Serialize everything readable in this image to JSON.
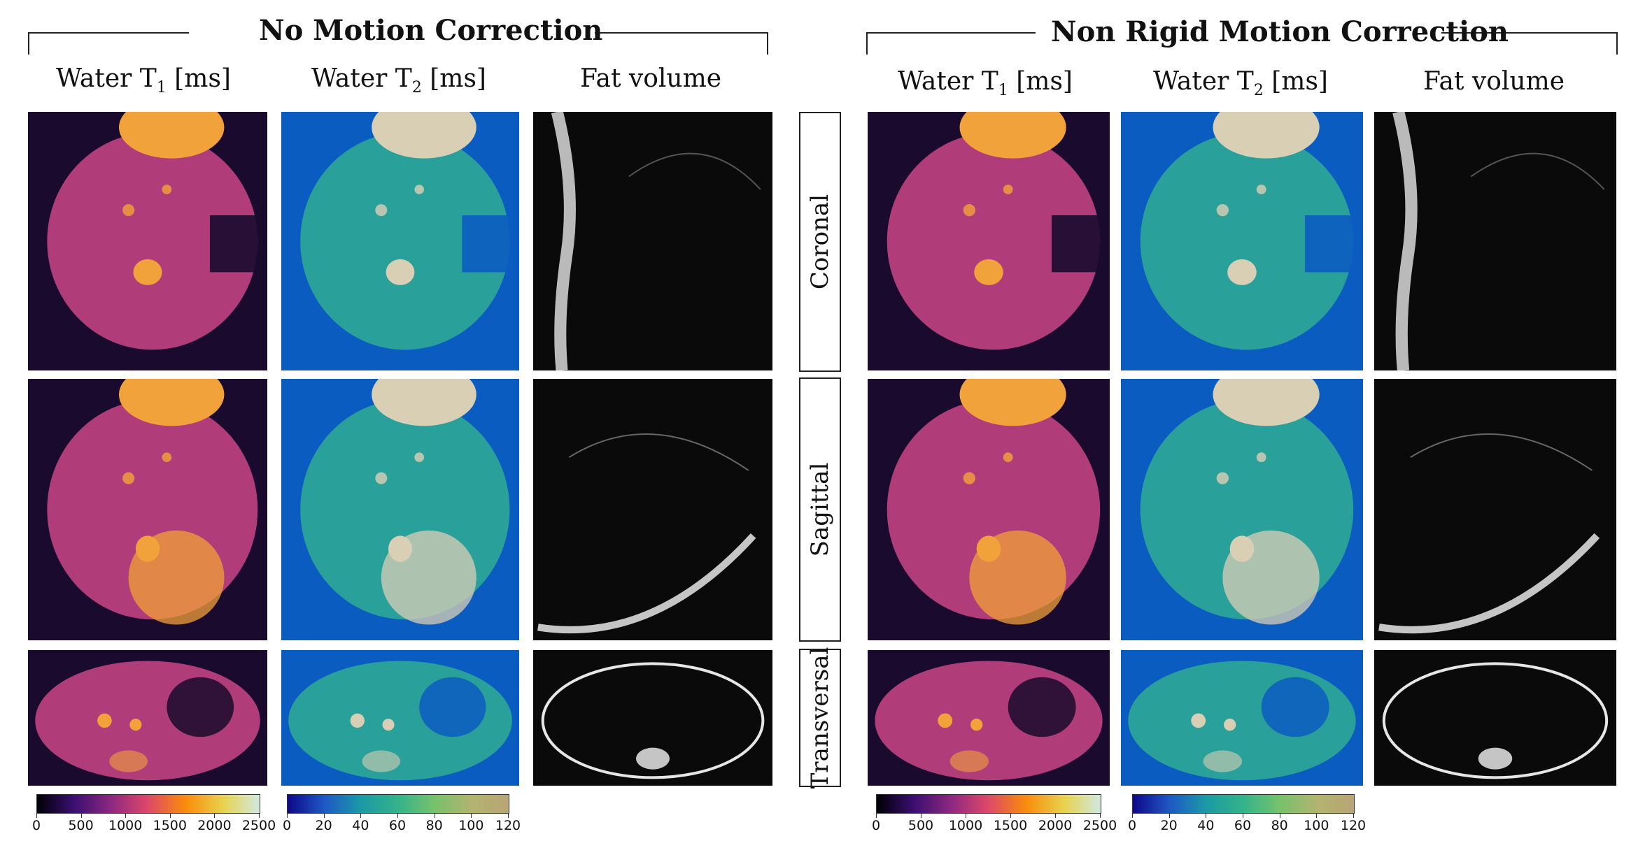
{
  "groups": [
    {
      "title": "No Motion Correction",
      "col_t1": "Water T",
      "col_t2": "Water T",
      "col_fat": "Fat volume",
      "sub1": "1",
      "sub2": "2"
    },
    {
      "title": "Non Rigid Motion Correction",
      "col_t1": "Water T",
      "col_t2": "Water T",
      "col_fat": "Fat volume",
      "sub1": "1",
      "sub2": "2"
    }
  ],
  "unit": "[ms]",
  "views": [
    "Coronal",
    "Sagittal",
    "Transversal"
  ],
  "colorbars": {
    "t1": {
      "ticks": [
        "0",
        "500",
        "1000",
        "1500",
        "2000",
        "2500"
      ],
      "colors": [
        "#000004",
        "#3b0f70",
        "#8c2981",
        "#de4968",
        "#f98c0a",
        "#e8d14c",
        "#d0e9e0"
      ]
    },
    "t2": {
      "ticks": [
        "0",
        "20",
        "40",
        "60",
        "80",
        "100",
        "120"
      ],
      "colors": [
        "#0d0887",
        "#1f58c4",
        "#1b9aa5",
        "#34b38a",
        "#77c26a",
        "#b2b470",
        "#b9a574"
      ]
    }
  },
  "panel_colors": {
    "t1_bg": "#1a0a2e",
    "t1_tissue": "#b03d7a",
    "t1_bright": "#f2a23a",
    "t2_bg": "#0b5cc0",
    "t2_tissue": "#2aa09a",
    "t2_bright": "#d9cfb5",
    "fat_bg": "#0a0a0a",
    "fat_bright": "#e6e6e6"
  }
}
